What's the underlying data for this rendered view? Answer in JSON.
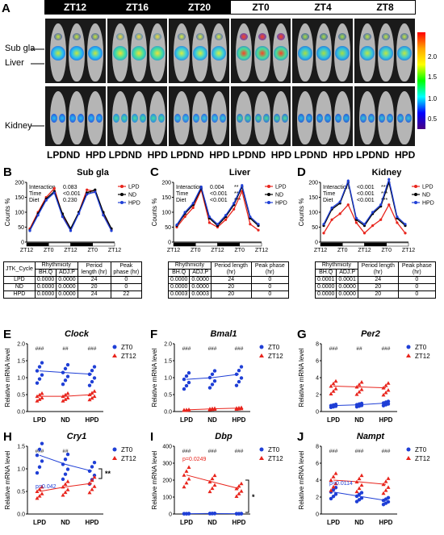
{
  "panel_a": {
    "letter": "A",
    "timepoints": [
      "ZT12",
      "ZT16",
      "ZT20",
      "ZT0",
      "ZT4",
      "ZT8"
    ],
    "row_labels": [
      "Sub gla",
      "Liver",
      "Kidney"
    ],
    "groups": [
      "LPD",
      "ND",
      "HPD"
    ],
    "colorbar_ticks": [
      "2.0",
      "1.5",
      "1.0",
      "0.5"
    ]
  },
  "rhythm_panels": [
    {
      "letter": "B",
      "title": "Sub gla",
      "ylabel": "Counts %",
      "stats": [
        [
          "Interaction",
          "0.083",
          ""
        ],
        [
          "Time",
          "<0.001",
          "***"
        ],
        [
          "Diet",
          "0.230",
          ""
        ]
      ],
      "xticks": [
        "ZT12",
        "ZT0",
        "ZT12",
        "ZT0",
        "ZT12"
      ],
      "table": {
        "head1": [
          "JTK_Cycle",
          "Rhythmicity",
          "Period length (hr)",
          "Peak phase (hr)"
        ],
        "head2": [
          "BH.Q",
          "ADJ.P"
        ],
        "rows": [
          [
            "LPD",
            "0.0000",
            "0.0000",
            "24",
            "0"
          ],
          [
            "ND",
            "0.0000",
            "0.0000",
            "20",
            "0"
          ],
          [
            "HPD",
            "0.0000",
            "0.0000",
            "24",
            "22"
          ]
        ]
      }
    },
    {
      "letter": "C",
      "title": "Liver",
      "ylabel": "Counts %",
      "stats": [
        [
          "Interaction",
          "0.004",
          "**"
        ],
        [
          "Time",
          "<0.001",
          "***"
        ],
        [
          "Diet",
          "<0.001",
          "***"
        ]
      ],
      "xticks": [
        "ZT12",
        "ZT0",
        "ZT12",
        "ZT0",
        "ZT12"
      ],
      "table": {
        "head1": [
          "Rhythmicity",
          "Period length (hr)",
          "Peak phase (hr)"
        ],
        "head2": [
          "BH.Q",
          "ADJ.P"
        ],
        "rows": [
          [
            "0.0000",
            "0.0000",
            "24",
            "0"
          ],
          [
            "0.0000",
            "0.0000",
            "20",
            "0"
          ],
          [
            "0.0003",
            "0.0003",
            "20",
            "0"
          ]
        ]
      }
    },
    {
      "letter": "D",
      "title": "Kidney",
      "ylabel": "Counts %",
      "stats": [
        [
          "Interaction",
          "<0.001",
          "***"
        ],
        [
          "Time",
          "<0.001",
          "***"
        ],
        [
          "Diet",
          "<0.001",
          "***"
        ]
      ],
      "xticks": [
        "ZT12",
        "ZT0",
        "ZT12",
        "ZT0",
        "ZT12"
      ],
      "table": {
        "head1": [
          "Rhythmicity",
          "Period length (hr)",
          "Peak phase (hr)"
        ],
        "head2": [
          "BH.Q",
          "ADJ.P"
        ],
        "rows": [
          [
            "0.0001",
            "0.0001",
            "24",
            "0"
          ],
          [
            "0.0000",
            "0.0000",
            "20",
            "0"
          ],
          [
            "0.0000",
            "0.0000",
            "20",
            "0"
          ]
        ]
      }
    }
  ],
  "legend_groups": [
    "LPD",
    "ND",
    "HPD"
  ],
  "gene_panels": [
    {
      "letter": "E",
      "gene": "Clock",
      "ymax": 2.0,
      "yticks": [
        "0.0",
        "0.5",
        "1.0",
        "1.5",
        "2.0"
      ],
      "marks": [
        "###",
        "##",
        "###"
      ],
      "pval": "",
      "sig": ""
    },
    {
      "letter": "F",
      "gene": "Bmal1",
      "ymax": 2.0,
      "yticks": [
        "0.0",
        "0.5",
        "1.0",
        "1.5",
        "2.0"
      ],
      "marks": [
        "###",
        "###",
        "###"
      ],
      "pval": "",
      "sig": ""
    },
    {
      "letter": "G",
      "gene": "Per2",
      "ymax": 8,
      "yticks": [
        "0",
        "2",
        "4",
        "6",
        "8"
      ],
      "marks": [
        "###",
        "##",
        "###"
      ],
      "pval": "",
      "sig": ""
    },
    {
      "letter": "H",
      "gene": "Cry1",
      "ymax": 1.5,
      "yticks": [
        "0.0",
        "0.5",
        "1.0",
        "1.5"
      ],
      "marks": [
        "###",
        "##",
        ""
      ],
      "pval": "p=0.042",
      "sig": "**"
    },
    {
      "letter": "I",
      "gene": "Dbp",
      "ymax": 400,
      "yticks": [
        "0",
        "100",
        "200",
        "300",
        "400"
      ],
      "marks": [
        "###",
        "###",
        "###"
      ],
      "pval": "p=0.0249",
      "sig": "*"
    },
    {
      "letter": "J",
      "gene": "Nampt",
      "ymax": 8,
      "yticks": [
        "0",
        "2",
        "4",
        "6",
        "8"
      ],
      "marks": [
        "###",
        "###",
        "###"
      ],
      "pval": "p=0.0114",
      "sig": ""
    }
  ],
  "gene_common": {
    "ylabel": "Relative mRNA level",
    "groups": [
      "LPD",
      "ND",
      "HPD"
    ],
    "legend": [
      "ZT0",
      "ZT12"
    ]
  }
}
